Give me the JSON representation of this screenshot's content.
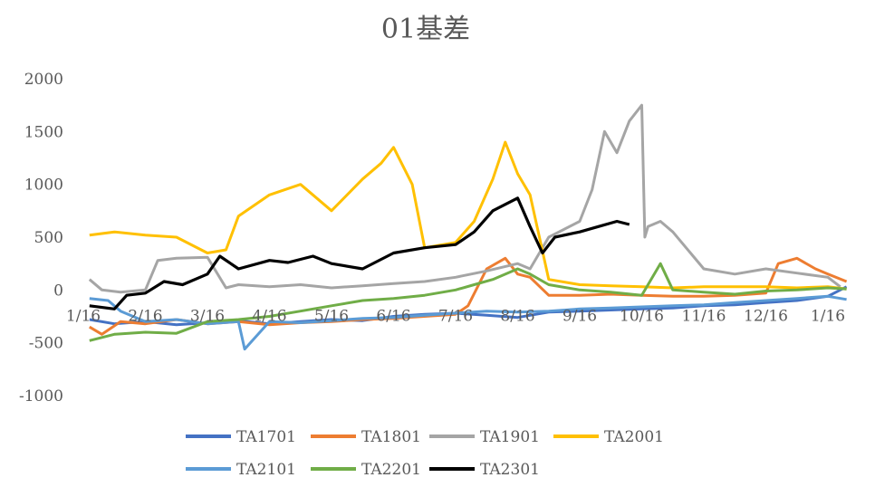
{
  "chart_data": {
    "type": "line",
    "title": "01基差",
    "xlabel": "",
    "ylabel": "",
    "ylim": [
      -1000,
      2000
    ],
    "yticks": [
      2000,
      1500,
      1000,
      500,
      0,
      -500,
      -1000
    ],
    "x_tick_labels": [
      "1/16",
      "2/16",
      "3/16",
      "4/16",
      "5/16",
      "6/16",
      "7/16",
      "8/16",
      "9/16",
      "10/16",
      "11/16",
      "12/16",
      "1/16"
    ],
    "x_domain": [
      0,
      12
    ],
    "grid": false,
    "legend_position": "bottom",
    "colors": {
      "TA1701": "#4472C4",
      "TA1801": "#ED7D31",
      "TA1901": "#A5A5A5",
      "TA2001": "#FFC000",
      "TA2101": "#5B9BD5",
      "TA2201": "#70AD47",
      "TA2301": "#000000"
    },
    "series": [
      {
        "name": "TA1701",
        "x": [
          0.1,
          0.5,
          1,
          1.5,
          2,
          2.5,
          3,
          3.5,
          4,
          4.5,
          5,
          5.5,
          6,
          6.5,
          7,
          7.5,
          8,
          8.5,
          9,
          9.5,
          10,
          10.5,
          11,
          11.5,
          12,
          12.3
        ],
        "y": [
          -280,
          -320,
          -300,
          -330,
          -310,
          -290,
          -320,
          -300,
          -280,
          -290,
          -250,
          -230,
          -220,
          -240,
          -260,
          -210,
          -200,
          -190,
          -180,
          -170,
          -150,
          -140,
          -120,
          -100,
          -60,
          30
        ]
      },
      {
        "name": "TA1801",
        "x": [
          0.1,
          0.3,
          0.6,
          1,
          1.5,
          2,
          2.5,
          3,
          3.5,
          4,
          4.5,
          5,
          5.5,
          6,
          6.2,
          6.5,
          6.8,
          7,
          7.2,
          7.5,
          8,
          8.5,
          9,
          9.5,
          10,
          10.5,
          11,
          11.2,
          11.5,
          11.8,
          12,
          12.3
        ],
        "y": [
          -350,
          -420,
          -300,
          -320,
          -280,
          -320,
          -300,
          -330,
          -310,
          -300,
          -280,
          -270,
          -250,
          -230,
          -150,
          200,
          300,
          150,
          120,
          -50,
          -50,
          -40,
          -50,
          -60,
          -60,
          -50,
          -30,
          250,
          300,
          200,
          150,
          80
        ]
      },
      {
        "name": "TA1901",
        "x": [
          0.1,
          0.3,
          0.6,
          1,
          1.2,
          1.5,
          2,
          2.3,
          2.5,
          3,
          3.5,
          4,
          4.5,
          5,
          5.5,
          6,
          6.5,
          7,
          7.2,
          7.5,
          8,
          8.2,
          8.4,
          8.6,
          8.8,
          9,
          9.05,
          9.1,
          9.3,
          9.5,
          10,
          10.5,
          11,
          11.5,
          12,
          12.2
        ],
        "y": [
          100,
          0,
          -20,
          0,
          280,
          300,
          310,
          20,
          50,
          30,
          50,
          20,
          40,
          60,
          80,
          120,
          180,
          250,
          200,
          500,
          650,
          950,
          1500,
          1300,
          1600,
          1750,
          500,
          600,
          650,
          550,
          200,
          150,
          200,
          160,
          120,
          30
        ]
      },
      {
        "name": "TA2001",
        "x": [
          0.1,
          0.5,
          1,
          1.5,
          2,
          2.3,
          2.5,
          3,
          3.5,
          4,
          4.5,
          4.8,
          5,
          5.3,
          5.5,
          6,
          6.3,
          6.6,
          6.8,
          7,
          7.2,
          7.5,
          8,
          8.5,
          9,
          9.5,
          10,
          10.5,
          11,
          11.5,
          12,
          12.3
        ],
        "y": [
          520,
          550,
          520,
          500,
          350,
          380,
          700,
          900,
          1000,
          750,
          1050,
          1200,
          1350,
          1000,
          400,
          450,
          650,
          1050,
          1400,
          1100,
          900,
          100,
          50,
          40,
          30,
          20,
          30,
          30,
          30,
          20,
          30,
          10
        ]
      },
      {
        "name": "TA2101",
        "x": [
          0.1,
          0.4,
          0.6,
          1,
          1.5,
          2,
          2.5,
          2.6,
          3,
          3.5,
          4,
          4.5,
          5,
          5.5,
          6,
          6.5,
          7,
          7.5,
          8,
          8.5,
          9,
          9.5,
          10,
          10.5,
          11,
          11.5,
          12,
          12.3
        ],
        "y": [
          -80,
          -100,
          -200,
          -300,
          -280,
          -320,
          -300,
          -560,
          -300,
          -310,
          -290,
          -270,
          -260,
          -240,
          -220,
          -200,
          -210,
          -200,
          -180,
          -170,
          -160,
          -150,
          -140,
          -120,
          -100,
          -80,
          -60,
          -90
        ]
      },
      {
        "name": "TA2201",
        "x": [
          0.1,
          0.5,
          1,
          1.5,
          2,
          2.5,
          3,
          3.5,
          4,
          4.5,
          5,
          5.5,
          6,
          6.3,
          6.6,
          7,
          7.2,
          7.5,
          8,
          8.5,
          9,
          9.3,
          9.5,
          10,
          10.5,
          11,
          11.5,
          12,
          12.3
        ],
        "y": [
          -480,
          -420,
          -400,
          -410,
          -300,
          -280,
          -250,
          -200,
          -150,
          -100,
          -80,
          -50,
          0,
          50,
          100,
          200,
          150,
          50,
          0,
          -20,
          -50,
          250,
          0,
          -20,
          -40,
          -10,
          0,
          20,
          10
        ]
      },
      {
        "name": "TA2301",
        "x": [
          0.1,
          0.5,
          0.7,
          1,
          1.3,
          1.6,
          2,
          2.2,
          2.5,
          3,
          3.3,
          3.7,
          4,
          4.5,
          5,
          5.5,
          6,
          6.3,
          6.6,
          7,
          7.2,
          7.4,
          7.6,
          8,
          8.3,
          8.6,
          8.8
        ],
        "y": [
          -150,
          -180,
          -50,
          -30,
          80,
          50,
          150,
          320,
          200,
          280,
          260,
          320,
          250,
          200,
          350,
          400,
          430,
          550,
          750,
          870,
          600,
          350,
          500,
          550,
          600,
          650,
          620
        ]
      }
    ]
  }
}
